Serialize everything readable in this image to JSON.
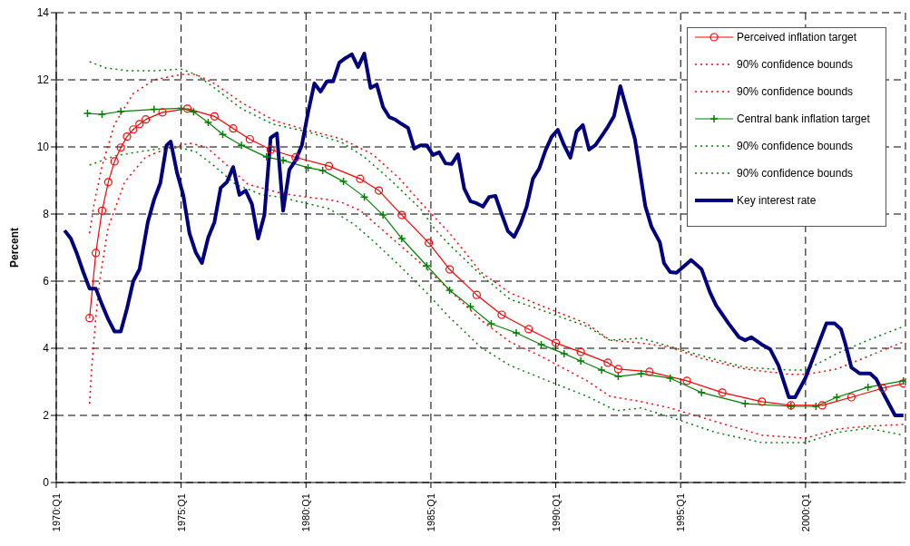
{
  "chart_data": {
    "type": "line",
    "ylabel": "Percent",
    "xlim": [
      "1970-01",
      "2004-01"
    ],
    "xticks": [
      {
        "value": "1970-01",
        "label": "1970:Q1"
      },
      {
        "value": "1975-01",
        "label": "1975:Q1"
      },
      {
        "value": "1980-01",
        "label": "1980:Q1"
      },
      {
        "value": "1985-01",
        "label": "1985:Q1"
      },
      {
        "value": "1990-01",
        "label": "1990:Q1"
      },
      {
        "value": "1995-01",
        "label": "1995:Q1"
      },
      {
        "value": "2000-01",
        "label": "2000:Q1"
      }
    ],
    "ylim": [
      0,
      14
    ],
    "yticks": [
      0,
      2,
      4,
      6,
      8,
      10,
      12,
      14
    ],
    "grid": true,
    "legend": "top right",
    "series": [
      {
        "name": "Perceived inflation target",
        "color": "#ff0000",
        "marker": "circle",
        "line_style": "solid",
        "x": [
          "1971-05",
          "1971-08",
          "1971-11",
          "1972-02",
          "1972-05",
          "1972-08",
          "1972-11",
          "1973-02",
          "1973-05",
          "1973-08",
          "1974-04",
          "1975-04",
          "1976-05",
          "1977-02",
          "1977-10",
          "1978-08",
          "1979-08",
          "1980-12",
          "1982-03",
          "1982-12",
          "1983-11",
          "1984-12",
          "1985-10",
          "1986-11",
          "1987-11",
          "1988-12",
          "1990-01",
          "1991-01",
          "1992-02",
          "1992-07",
          "1993-10",
          "1995-04",
          "1996-09",
          "1998-04",
          "1999-06",
          "2000-09",
          "2001-11",
          "2003-02",
          "2003-12"
        ],
        "values": [
          4.9,
          6.84,
          8.1,
          8.95,
          9.57,
          9.98,
          10.31,
          10.52,
          10.68,
          10.82,
          11.03,
          11.14,
          10.91,
          10.55,
          10.23,
          9.92,
          9.69,
          9.43,
          9.05,
          8.7,
          7.97,
          7.14,
          6.35,
          5.59,
          5.0,
          4.57,
          4.16,
          3.89,
          3.57,
          3.38,
          3.3,
          3.03,
          2.68,
          2.41,
          2.3,
          2.3,
          2.54,
          2.81,
          2.95
        ]
      },
      {
        "name": "90% confidence bounds",
        "color": "#ff0000",
        "marker": "none",
        "line_style": "dotted",
        "x": [
          "1971-05",
          "1971-07",
          "1971-11",
          "1972-05",
          "1973-02",
          "1973-12",
          "1975-01",
          "1975-08",
          "1976-05",
          "1977-06",
          "1978-10",
          "1980-01",
          "1981-06",
          "1982-09",
          "1983-10",
          "1984-08",
          "1985-10",
          "1987-01",
          "1988-03",
          "1989-06",
          "1991-04",
          "1992-03",
          "1993-06",
          "1994-08",
          "1995-11",
          "1997-08",
          "1999-06",
          "2000-01",
          "2001-04",
          "2002-07",
          "2003-12"
        ],
        "values": [
          7.43,
          8.24,
          9.43,
          10.68,
          11.59,
          12.0,
          12.16,
          12.16,
          11.89,
          11.32,
          10.78,
          10.51,
          10.24,
          9.78,
          9.05,
          8.35,
          7.43,
          6.27,
          5.65,
          5.27,
          4.73,
          4.24,
          4.16,
          4.03,
          3.7,
          3.38,
          3.22,
          3.22,
          3.38,
          3.76,
          4.19
        ]
      },
      {
        "name": "90% confidence bounds",
        "color": "#ff0000",
        "marker": "none",
        "line_style": "dotted",
        "x": [
          "1971-05",
          "1971-06",
          "1971-08",
          "1971-10",
          "1972-02",
          "1972-10",
          "1973-08",
          "1974-07",
          "1975-05",
          "1976-01",
          "1976-10",
          "1977-09",
          "1979-01",
          "1980-03",
          "1980-12",
          "1981-06",
          "1982-03",
          "1983-05",
          "1984-08",
          "1985-10",
          "1987-01",
          "1988-03",
          "1989-06",
          "1991-04",
          "1992-03",
          "1993-06",
          "1994-08",
          "1996-06",
          "1998-04",
          "2000-01",
          "2001-04",
          "2002-07",
          "2003-12"
        ],
        "values": [
          2.35,
          3.38,
          4.92,
          6.08,
          7.62,
          8.97,
          9.7,
          9.97,
          10.11,
          10.0,
          9.51,
          8.89,
          8.62,
          8.49,
          8.43,
          8.35,
          8.11,
          7.35,
          6.54,
          5.73,
          4.84,
          4.19,
          3.76,
          3.03,
          2.57,
          2.41,
          2.22,
          1.81,
          1.41,
          1.32,
          1.59,
          1.68,
          1.73
        ]
      },
      {
        "name": "Central bank inflation target",
        "color": "#008000",
        "marker": "cross",
        "line_style": "solid",
        "x": [
          "1971-04",
          "1971-11",
          "1972-08",
          "1973-12",
          "1975-01",
          "1975-07",
          "1976-02",
          "1976-09",
          "1977-06",
          "1978-06",
          "1979-02",
          "1980-02",
          "1980-09",
          "1981-07",
          "1982-05",
          "1983-02",
          "1983-11",
          "1984-11",
          "1985-10",
          "1986-08",
          "1987-06",
          "1988-06",
          "1989-06",
          "1990-05",
          "1991-01",
          "1991-11",
          "1992-07",
          "1993-06",
          "1994-08",
          "1995-11",
          "1997-08",
          "1999-06",
          "2000-06",
          "2001-04",
          "2002-07",
          "2003-12"
        ],
        "values": [
          11.0,
          10.97,
          11.06,
          11.12,
          11.15,
          11.05,
          10.73,
          10.37,
          10.05,
          9.7,
          9.6,
          9.38,
          9.3,
          8.97,
          8.51,
          7.97,
          7.27,
          6.46,
          5.73,
          5.24,
          4.73,
          4.46,
          4.11,
          3.84,
          3.62,
          3.35,
          3.16,
          3.24,
          3.11,
          2.68,
          2.35,
          2.27,
          2.27,
          2.54,
          2.84,
          3.03
        ]
      },
      {
        "name": "90% confidence bounds",
        "color": "#008000",
        "marker": "none",
        "line_style": "dotted",
        "x": [
          "1971-05",
          "1972-01",
          "1972-12",
          "1973-12",
          "1975-01",
          "1975-08",
          "1976-05",
          "1977-06",
          "1978-09",
          "1980-01",
          "1981-06",
          "1982-05",
          "1983-05",
          "1984-08",
          "1985-03",
          "1985-10",
          "1987-01",
          "1988-03",
          "1989-06",
          "1991-04",
          "1992-03",
          "1993-06",
          "1994-08",
          "1995-11",
          "1997-08",
          "1999-06",
          "2000-01",
          "2001-04",
          "2002-07",
          "2003-12"
        ],
        "values": [
          12.54,
          12.35,
          12.27,
          12.27,
          12.32,
          12.16,
          11.76,
          11.14,
          10.68,
          10.46,
          10.14,
          9.7,
          9.05,
          8.16,
          7.54,
          7.08,
          6.19,
          5.46,
          5.14,
          4.65,
          4.24,
          4.3,
          4.05,
          3.78,
          3.43,
          3.35,
          3.35,
          3.84,
          4.24,
          4.65
        ]
      },
      {
        "name": "90% confidence bounds",
        "color": "#008000",
        "marker": "none",
        "line_style": "dotted",
        "x": [
          "1971-05",
          "1972-05",
          "1973-05",
          "1974-03",
          "1975-01",
          "1975-08",
          "1976-05",
          "1977-03",
          "1978-04",
          "1978-12",
          "1979-11",
          "1980-12",
          "1981-12",
          "1982-10",
          "1983-10",
          "1984-11",
          "1985-10",
          "1987-01",
          "1988-03",
          "1989-06",
          "1991-04",
          "1992-06",
          "1993-06",
          "1994-08",
          "1996-06",
          "1998-04",
          "2000-01",
          "2001-04",
          "2002-07",
          "2003-12"
        ],
        "values": [
          9.46,
          9.73,
          9.86,
          9.95,
          9.97,
          9.86,
          9.43,
          8.89,
          8.57,
          8.51,
          8.35,
          8.16,
          7.7,
          7.16,
          6.46,
          5.65,
          4.92,
          4.03,
          3.49,
          3.11,
          2.57,
          2.14,
          2.22,
          1.95,
          1.49,
          1.19,
          1.19,
          1.49,
          1.62,
          1.41
        ]
      },
      {
        "name": "Key interest rate",
        "color": "#000080",
        "marker": "none",
        "line_style": "solid",
        "x": [
          "1970-05",
          "1970-08",
          "1970-11",
          "1971-02",
          "1971-05",
          "1971-08",
          "1971-11",
          "1972-02",
          "1972-05",
          "1972-08",
          "1972-11",
          "1973-02",
          "1973-05",
          "1973-09",
          "1973-12",
          "1974-03",
          "1974-06",
          "1974-08",
          "1974-11",
          "1975-02",
          "1975-05",
          "1975-08",
          "1975-11",
          "1976-02",
          "1976-05",
          "1976-08",
          "1976-11",
          "1977-02",
          "1977-05",
          "1977-08",
          "1977-11",
          "1978-02",
          "1978-05",
          "1978-08",
          "1978-11",
          "1979-02",
          "1979-05",
          "1979-08",
          "1979-11",
          "1980-02",
          "1980-05",
          "1980-08",
          "1980-11",
          "1981-02",
          "1981-05",
          "1981-08",
          "1981-11",
          "1982-02",
          "1982-05",
          "1982-08",
          "1982-11",
          "1983-02",
          "1983-05",
          "1983-08",
          "1983-11",
          "1984-02",
          "1984-05",
          "1984-08",
          "1984-11",
          "1985-02",
          "1985-05",
          "1985-08",
          "1985-11",
          "1986-02",
          "1986-05",
          "1986-08",
          "1986-11",
          "1987-02",
          "1987-05",
          "1987-08",
          "1987-11",
          "1988-02",
          "1988-05",
          "1988-08",
          "1988-11",
          "1989-02",
          "1989-05",
          "1989-08",
          "1989-11",
          "1990-02",
          "1990-05",
          "1990-08",
          "1990-11",
          "1991-02",
          "1991-05",
          "1991-08",
          "1991-11",
          "1992-02",
          "1992-05",
          "1992-08",
          "1993-03",
          "1993-08",
          "1993-11",
          "1994-03",
          "1994-05",
          "1994-08",
          "1994-11",
          "1995-06",
          "1995-11",
          "1996-03",
          "1996-06",
          "1996-12",
          "1997-05",
          "1997-08",
          "1997-11",
          "1998-04",
          "1998-08",
          "1998-12",
          "1999-05",
          "1999-08",
          "2000-01",
          "2000-06",
          "2000-11",
          "2001-03",
          "2001-06",
          "2001-08",
          "2001-11",
          "2002-03",
          "2002-08",
          "2002-11",
          "2003-03",
          "2003-08",
          "2003-12"
        ],
        "values": [
          7.51,
          7.27,
          6.81,
          6.27,
          5.78,
          5.78,
          5.3,
          4.86,
          4.5,
          4.5,
          5.19,
          6.0,
          6.35,
          7.76,
          8.43,
          8.92,
          10.05,
          10.16,
          9.24,
          8.57,
          7.43,
          6.86,
          6.54,
          7.3,
          7.76,
          8.78,
          8.95,
          9.4,
          8.57,
          8.7,
          8.3,
          7.27,
          7.97,
          10.27,
          10.4,
          8.1,
          9.32,
          9.6,
          10.05,
          11.03,
          11.89,
          11.65,
          11.95,
          11.95,
          12.51,
          12.65,
          12.76,
          12.38,
          12.78,
          11.76,
          11.86,
          11.19,
          10.89,
          10.81,
          10.68,
          10.57,
          9.95,
          10.05,
          10.05,
          9.76,
          9.84,
          9.51,
          9.49,
          9.78,
          8.76,
          8.38,
          8.32,
          8.22,
          8.51,
          8.54,
          8.0,
          7.49,
          7.32,
          7.7,
          8.22,
          9.05,
          9.35,
          9.89,
          10.3,
          10.51,
          10.05,
          9.68,
          10.46,
          10.65,
          9.92,
          10.05,
          10.32,
          10.6,
          10.92,
          11.81,
          10.24,
          8.24,
          7.62,
          7.16,
          6.54,
          6.27,
          6.25,
          6.63,
          6.36,
          5.68,
          5.28,
          4.74,
          4.33,
          4.24,
          4.33,
          4.11,
          3.97,
          3.49,
          2.54,
          2.54,
          3.12,
          3.93,
          4.74,
          4.74,
          4.57,
          4.16,
          3.43,
          3.25,
          3.25,
          3.08,
          2.58,
          2.0,
          2.0
        ]
      }
    ]
  }
}
